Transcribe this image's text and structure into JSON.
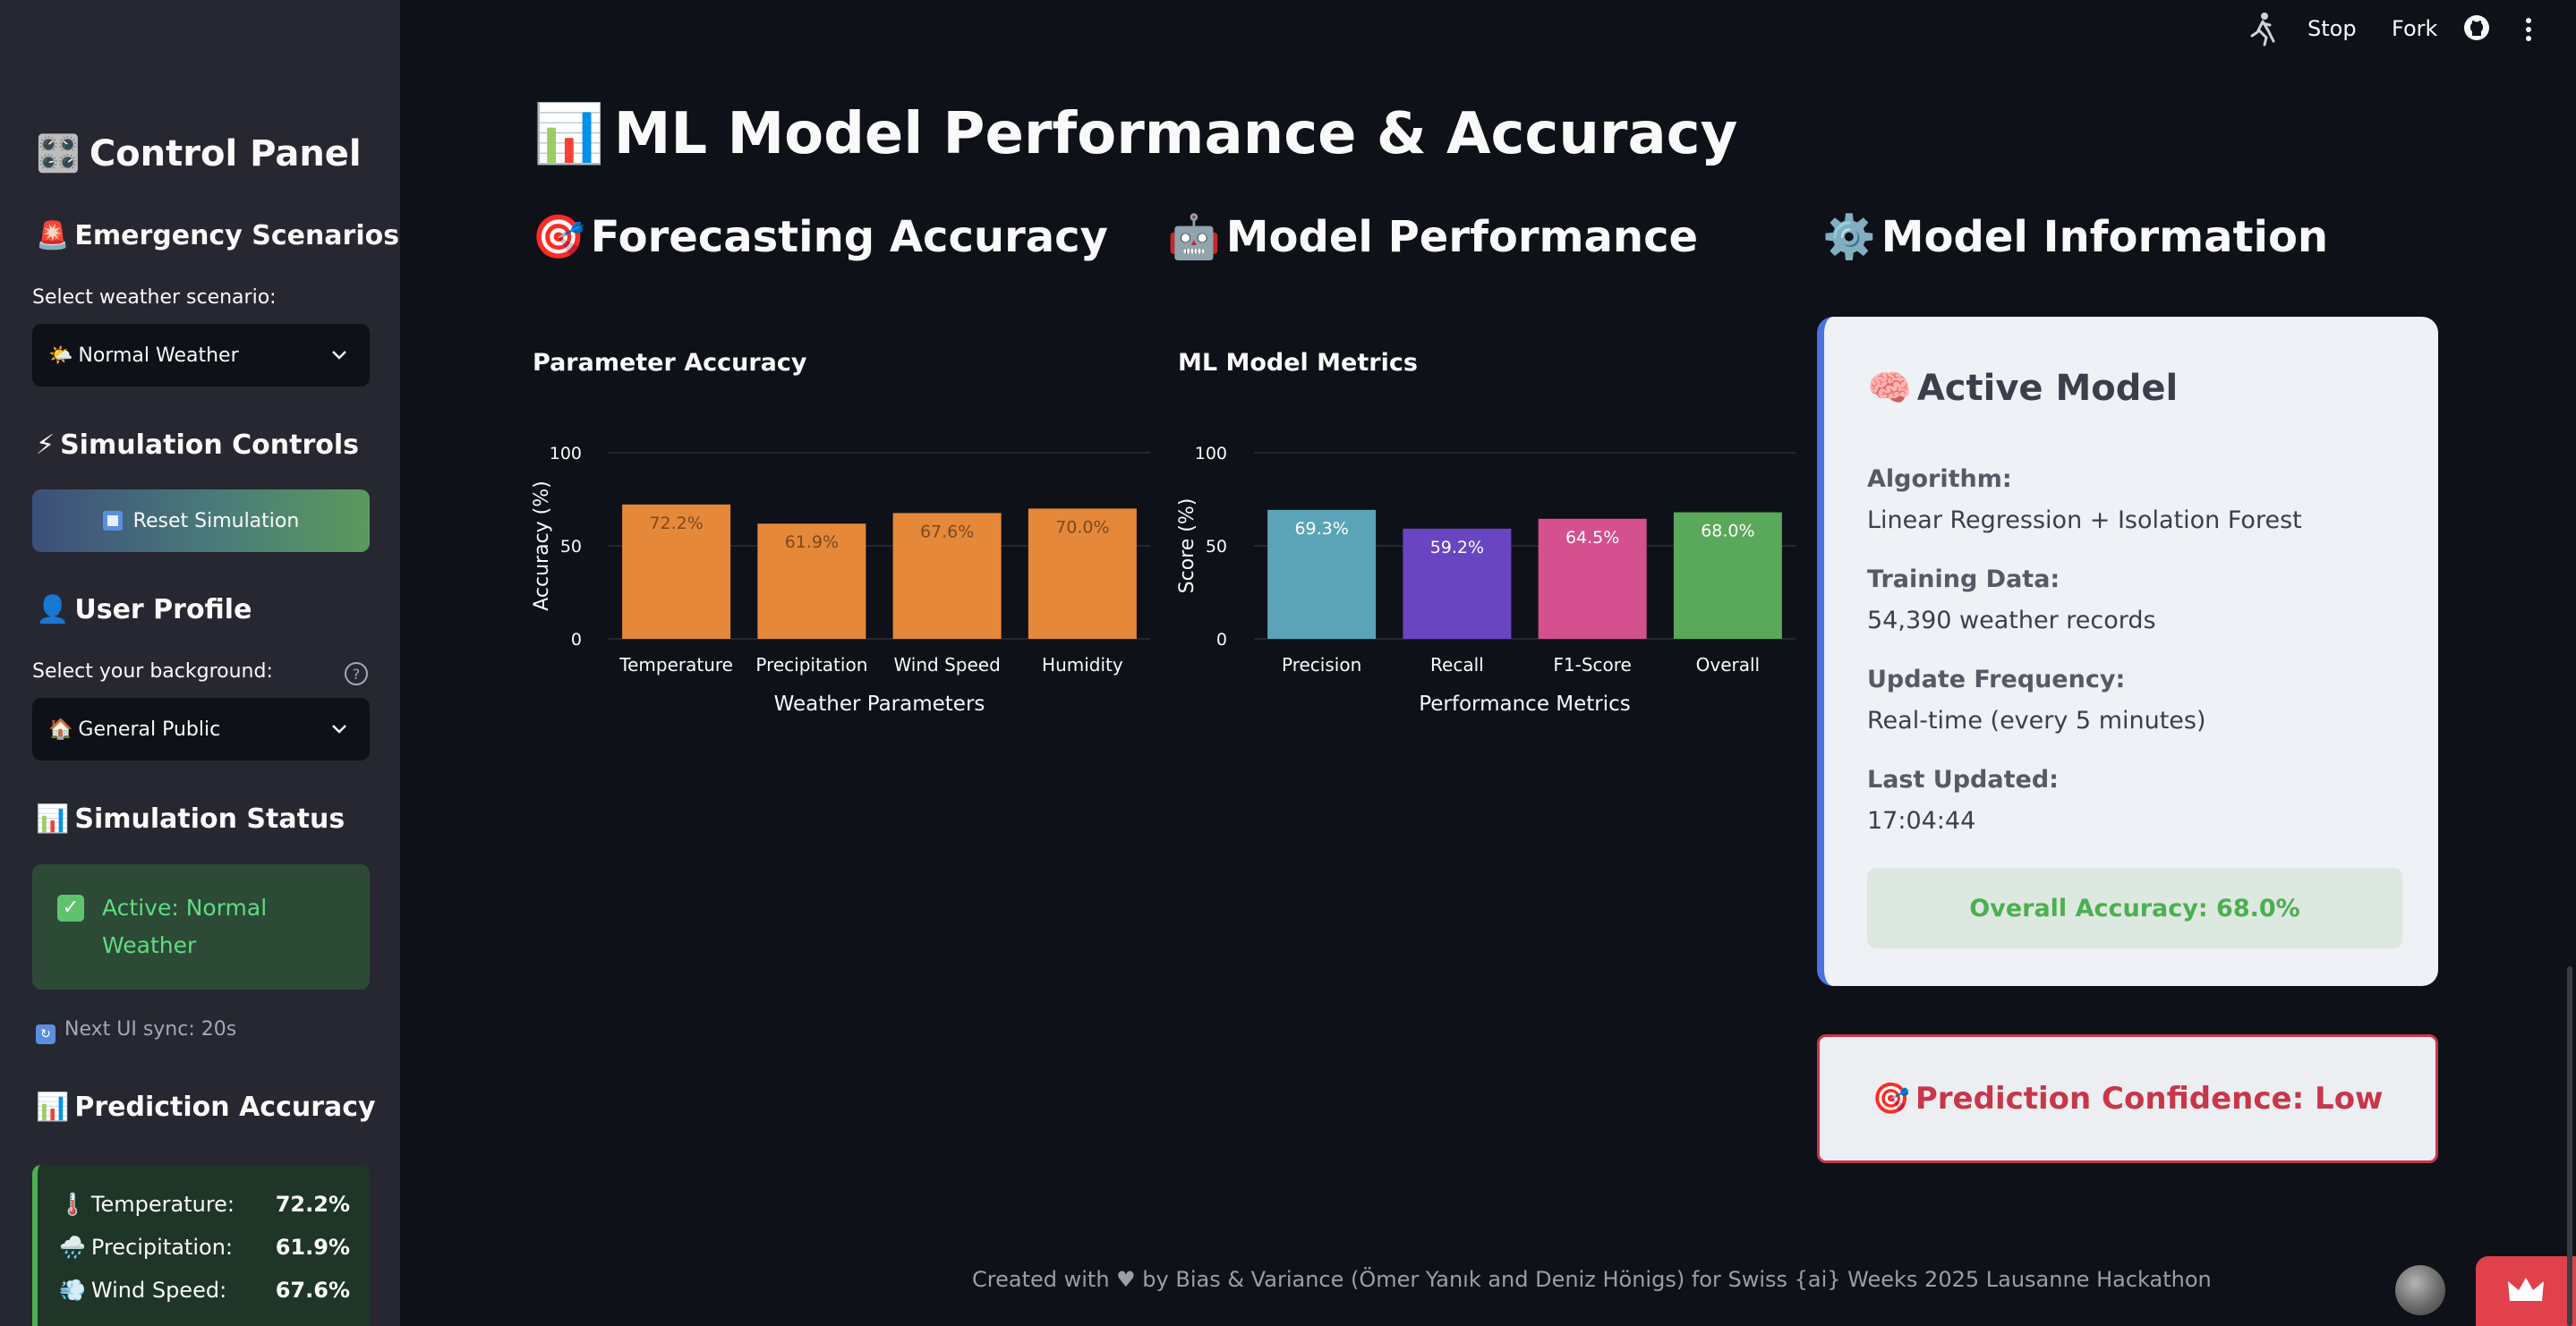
{
  "topbar": {
    "stop_label": "Stop",
    "fork_label": "Fork"
  },
  "sidebar": {
    "title": "Control Panel",
    "emergency": {
      "heading": "Emergency Scenarios",
      "select_label": "Select weather scenario:",
      "selected": "Normal Weather"
    },
    "simulation": {
      "heading": "Simulation Controls",
      "reset_label": "Reset Simulation"
    },
    "profile": {
      "heading": "User Profile",
      "select_label": "Select your background:",
      "selected": "General Public"
    },
    "status": {
      "heading": "Simulation Status",
      "text": "Active: Normal Weather",
      "sync": "Next UI sync: 20s"
    },
    "accuracy": {
      "heading": "Prediction Accuracy",
      "rows": [
        {
          "label": "Temperature:",
          "value": "72.2%"
        },
        {
          "label": "Precipitation:",
          "value": "61.9%"
        },
        {
          "label": "Wind Speed:",
          "value": "67.6%"
        }
      ]
    }
  },
  "main": {
    "title": "ML Model Performance & Accuracy",
    "col1_title": "Forecasting Accuracy",
    "col2_title": "Model Performance",
    "col3_title": "Model Information"
  },
  "chart_data": [
    {
      "type": "bar",
      "title": "Parameter Accuracy",
      "categories": [
        "Temperature",
        "Precipitation",
        "Wind Speed",
        "Humidity"
      ],
      "values": [
        72.2,
        61.9,
        67.6,
        70.0
      ],
      "labels": [
        "72.2%",
        "61.9%",
        "67.6%",
        "70.0%"
      ],
      "colors": [
        "#e6883a",
        "#e6883a",
        "#e6883a",
        "#e6883a"
      ],
      "label_color": "#7a4a20",
      "xlabel": "Weather Parameters",
      "ylabel": "Accuracy (%)",
      "ylim": [
        0,
        100
      ],
      "yticks": [
        "0",
        "50",
        "100"
      ]
    },
    {
      "type": "bar",
      "title": "ML Model Metrics",
      "categories": [
        "Precision",
        "Recall",
        "F1-Score",
        "Overall"
      ],
      "values": [
        69.3,
        59.2,
        64.5,
        68.0
      ],
      "labels": [
        "69.3%",
        "59.2%",
        "64.5%",
        "68.0%"
      ],
      "colors": [
        "#5ba4b8",
        "#6a45c2",
        "#d4508e",
        "#5aa85a"
      ],
      "label_color": "#ffffff",
      "xlabel": "Performance Metrics",
      "ylabel": "Score (%)",
      "ylim": [
        0,
        100
      ],
      "yticks": [
        "0",
        "50",
        "100"
      ]
    }
  ],
  "model_info": {
    "card_title": "Active Model",
    "algorithm_label": "Algorithm:",
    "algorithm_value": "Linear Regression + Isolation Forest",
    "training_label": "Training Data:",
    "training_value": "54,390 weather records",
    "update_label": "Update Frequency:",
    "update_value": "Real-time (every 5 minutes)",
    "last_label": "Last Updated:",
    "last_value": "17:04:44",
    "overall": "Overall Accuracy: 68.0%",
    "confidence": "Prediction Confidence: Low"
  },
  "footer": {
    "text": "Created with ♥ by Bias & Variance (Ömer Yanık and Deniz Hönigs) for Swiss {ai} Weeks 2025 Lausanne Hackathon"
  }
}
